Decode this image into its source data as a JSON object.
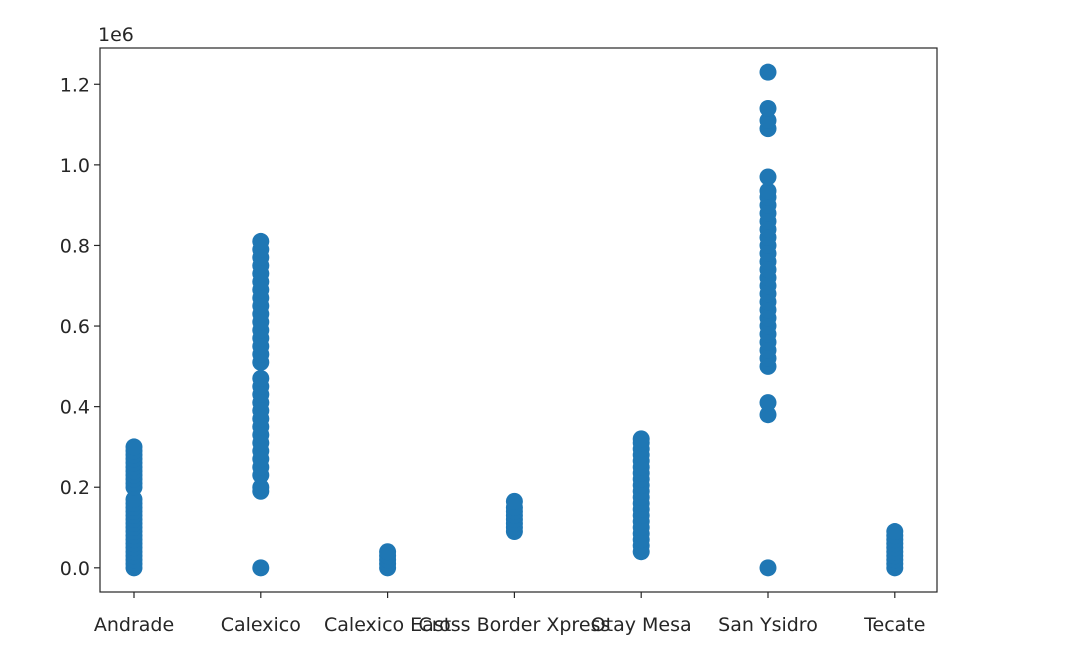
{
  "chart_data": {
    "type": "scatter",
    "title": "",
    "xlabel": "",
    "ylabel": "",
    "y_scale_label": "1e6",
    "grid": false,
    "ylim": [
      -60000,
      1290000
    ],
    "yticks": [
      0,
      200000,
      400000,
      600000,
      800000,
      1000000,
      1200000
    ],
    "ytick_labels": [
      "0.0",
      "0.2",
      "0.4",
      "0.6",
      "0.8",
      "1.0",
      "1.2"
    ],
    "categories": [
      "Andrade",
      "Calexico",
      "Calexico East",
      "Cross Border Xpress",
      "Otay Mesa",
      "San Ysidro",
      "Tecate"
    ],
    "marker_color": "#1f77b4",
    "series": [
      {
        "points": [
          {
            "x": "Andrade",
            "y": 0
          },
          {
            "x": "Andrade",
            "y": 10000
          },
          {
            "x": "Andrade",
            "y": 20000
          },
          {
            "x": "Andrade",
            "y": 30000
          },
          {
            "x": "Andrade",
            "y": 40000
          },
          {
            "x": "Andrade",
            "y": 50000
          },
          {
            "x": "Andrade",
            "y": 60000
          },
          {
            "x": "Andrade",
            "y": 70000
          },
          {
            "x": "Andrade",
            "y": 80000
          },
          {
            "x": "Andrade",
            "y": 90000
          },
          {
            "x": "Andrade",
            "y": 100000
          },
          {
            "x": "Andrade",
            "y": 110000
          },
          {
            "x": "Andrade",
            "y": 120000
          },
          {
            "x": "Andrade",
            "y": 130000
          },
          {
            "x": "Andrade",
            "y": 140000
          },
          {
            "x": "Andrade",
            "y": 150000
          },
          {
            "x": "Andrade",
            "y": 160000
          },
          {
            "x": "Andrade",
            "y": 170000
          },
          {
            "x": "Andrade",
            "y": 200000
          },
          {
            "x": "Andrade",
            "y": 210000
          },
          {
            "x": "Andrade",
            "y": 220000
          },
          {
            "x": "Andrade",
            "y": 230000
          },
          {
            "x": "Andrade",
            "y": 240000
          },
          {
            "x": "Andrade",
            "y": 250000
          },
          {
            "x": "Andrade",
            "y": 260000
          },
          {
            "x": "Andrade",
            "y": 270000
          },
          {
            "x": "Andrade",
            "y": 280000
          },
          {
            "x": "Andrade",
            "y": 290000
          },
          {
            "x": "Andrade",
            "y": 300000
          },
          {
            "x": "Calexico",
            "y": 0
          },
          {
            "x": "Calexico",
            "y": 190000
          },
          {
            "x": "Calexico",
            "y": 200000
          },
          {
            "x": "Calexico",
            "y": 230000
          },
          {
            "x": "Calexico",
            "y": 250000
          },
          {
            "x": "Calexico",
            "y": 270000
          },
          {
            "x": "Calexico",
            "y": 290000
          },
          {
            "x": "Calexico",
            "y": 310000
          },
          {
            "x": "Calexico",
            "y": 330000
          },
          {
            "x": "Calexico",
            "y": 350000
          },
          {
            "x": "Calexico",
            "y": 370000
          },
          {
            "x": "Calexico",
            "y": 390000
          },
          {
            "x": "Calexico",
            "y": 410000
          },
          {
            "x": "Calexico",
            "y": 430000
          },
          {
            "x": "Calexico",
            "y": 450000
          },
          {
            "x": "Calexico",
            "y": 470000
          },
          {
            "x": "Calexico",
            "y": 510000
          },
          {
            "x": "Calexico",
            "y": 530000
          },
          {
            "x": "Calexico",
            "y": 550000
          },
          {
            "x": "Calexico",
            "y": 570000
          },
          {
            "x": "Calexico",
            "y": 590000
          },
          {
            "x": "Calexico",
            "y": 610000
          },
          {
            "x": "Calexico",
            "y": 630000
          },
          {
            "x": "Calexico",
            "y": 650000
          },
          {
            "x": "Calexico",
            "y": 670000
          },
          {
            "x": "Calexico",
            "y": 690000
          },
          {
            "x": "Calexico",
            "y": 710000
          },
          {
            "x": "Calexico",
            "y": 730000
          },
          {
            "x": "Calexico",
            "y": 750000
          },
          {
            "x": "Calexico",
            "y": 770000
          },
          {
            "x": "Calexico",
            "y": 790000
          },
          {
            "x": "Calexico",
            "y": 810000
          },
          {
            "x": "Calexico East",
            "y": 0
          },
          {
            "x": "Calexico East",
            "y": 10000
          },
          {
            "x": "Calexico East",
            "y": 20000
          },
          {
            "x": "Calexico East",
            "y": 30000
          },
          {
            "x": "Calexico East",
            "y": 40000
          },
          {
            "x": "Cross Border Xpress",
            "y": 90000
          },
          {
            "x": "Cross Border Xpress",
            "y": 100000
          },
          {
            "x": "Cross Border Xpress",
            "y": 110000
          },
          {
            "x": "Cross Border Xpress",
            "y": 120000
          },
          {
            "x": "Cross Border Xpress",
            "y": 130000
          },
          {
            "x": "Cross Border Xpress",
            "y": 140000
          },
          {
            "x": "Cross Border Xpress",
            "y": 150000
          },
          {
            "x": "Cross Border Xpress",
            "y": 165000
          },
          {
            "x": "Otay Mesa",
            "y": 40000
          },
          {
            "x": "Otay Mesa",
            "y": 55000
          },
          {
            "x": "Otay Mesa",
            "y": 70000
          },
          {
            "x": "Otay Mesa",
            "y": 85000
          },
          {
            "x": "Otay Mesa",
            "y": 100000
          },
          {
            "x": "Otay Mesa",
            "y": 115000
          },
          {
            "x": "Otay Mesa",
            "y": 130000
          },
          {
            "x": "Otay Mesa",
            "y": 145000
          },
          {
            "x": "Otay Mesa",
            "y": 160000
          },
          {
            "x": "Otay Mesa",
            "y": 175000
          },
          {
            "x": "Otay Mesa",
            "y": 190000
          },
          {
            "x": "Otay Mesa",
            "y": 205000
          },
          {
            "x": "Otay Mesa",
            "y": 220000
          },
          {
            "x": "Otay Mesa",
            "y": 235000
          },
          {
            "x": "Otay Mesa",
            "y": 250000
          },
          {
            "x": "Otay Mesa",
            "y": 265000
          },
          {
            "x": "Otay Mesa",
            "y": 280000
          },
          {
            "x": "Otay Mesa",
            "y": 295000
          },
          {
            "x": "Otay Mesa",
            "y": 310000
          },
          {
            "x": "Otay Mesa",
            "y": 320000
          },
          {
            "x": "San Ysidro",
            "y": 0
          },
          {
            "x": "San Ysidro",
            "y": 380000
          },
          {
            "x": "San Ysidro",
            "y": 410000
          },
          {
            "x": "San Ysidro",
            "y": 500000
          },
          {
            "x": "San Ysidro",
            "y": 520000
          },
          {
            "x": "San Ysidro",
            "y": 540000
          },
          {
            "x": "San Ysidro",
            "y": 560000
          },
          {
            "x": "San Ysidro",
            "y": 580000
          },
          {
            "x": "San Ysidro",
            "y": 600000
          },
          {
            "x": "San Ysidro",
            "y": 620000
          },
          {
            "x": "San Ysidro",
            "y": 640000
          },
          {
            "x": "San Ysidro",
            "y": 660000
          },
          {
            "x": "San Ysidro",
            "y": 680000
          },
          {
            "x": "San Ysidro",
            "y": 700000
          },
          {
            "x": "San Ysidro",
            "y": 720000
          },
          {
            "x": "San Ysidro",
            "y": 740000
          },
          {
            "x": "San Ysidro",
            "y": 760000
          },
          {
            "x": "San Ysidro",
            "y": 780000
          },
          {
            "x": "San Ysidro",
            "y": 800000
          },
          {
            "x": "San Ysidro",
            "y": 820000
          },
          {
            "x": "San Ysidro",
            "y": 840000
          },
          {
            "x": "San Ysidro",
            "y": 860000
          },
          {
            "x": "San Ysidro",
            "y": 880000
          },
          {
            "x": "San Ysidro",
            "y": 900000
          },
          {
            "x": "San Ysidro",
            "y": 920000
          },
          {
            "x": "San Ysidro",
            "y": 935000
          },
          {
            "x": "San Ysidro",
            "y": 970000
          },
          {
            "x": "San Ysidro",
            "y": 1090000
          },
          {
            "x": "San Ysidro",
            "y": 1110000
          },
          {
            "x": "San Ysidro",
            "y": 1140000
          },
          {
            "x": "San Ysidro",
            "y": 1230000
          },
          {
            "x": "Tecate",
            "y": 0
          },
          {
            "x": "Tecate",
            "y": 10000
          },
          {
            "x": "Tecate",
            "y": 20000
          },
          {
            "x": "Tecate",
            "y": 30000
          },
          {
            "x": "Tecate",
            "y": 40000
          },
          {
            "x": "Tecate",
            "y": 50000
          },
          {
            "x": "Tecate",
            "y": 60000
          },
          {
            "x": "Tecate",
            "y": 70000
          },
          {
            "x": "Tecate",
            "y": 80000
          },
          {
            "x": "Tecate",
            "y": 90000
          }
        ]
      }
    ]
  }
}
